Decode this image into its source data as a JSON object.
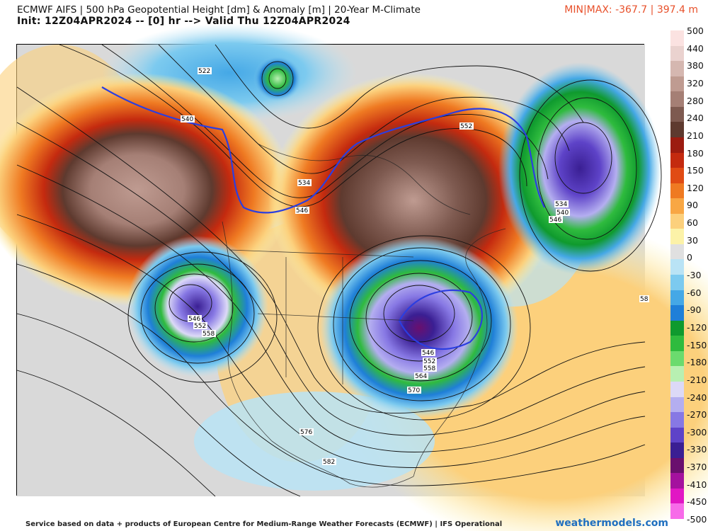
{
  "header": {
    "title": "ECMWF AIFS | 500 hPa Geopotential Height [dm] & Anomaly [m] | 20-Year M-Climate",
    "subtitle": "Init: 12Z04APR2024 -- [0] hr --> Valid Thu 12Z04APR2024",
    "minmax": "MIN|MAX: -367.7 | 397.4 m"
  },
  "colorbar": {
    "labels": [
      "500",
      "440",
      "380",
      "320",
      "280",
      "240",
      "210",
      "180",
      "150",
      "120",
      "90",
      "60",
      "30",
      "0",
      "-30",
      "-60",
      "-90",
      "-120",
      "-150",
      "-180",
      "-210",
      "-240",
      "-270",
      "-300",
      "-330",
      "-370",
      "-410",
      "-450",
      "-500"
    ],
    "colors": [
      "#fbe2e1",
      "#ead2cf",
      "#d5b7b0",
      "#bf9b91",
      "#a57f75",
      "#7e5a50",
      "#5e3a2f",
      "#9c1c10",
      "#c42a0f",
      "#e04b14",
      "#ef7a22",
      "#f8a744",
      "#fcd07c",
      "#fcf2a8",
      "#e0e0e0",
      "#b9e3f5",
      "#7ccaef",
      "#45a8e6",
      "#1f7fd8",
      "#0f9a2e",
      "#2fbb3e",
      "#6bdb6e",
      "#b8f0b2",
      "#dcd9f7",
      "#b4aef0",
      "#8778e4",
      "#5e43c8",
      "#3a1f93",
      "#6a0f6e",
      "#a4119e",
      "#e117c4",
      "#f76be9"
    ],
    "label_0_index": 13
  },
  "map": {
    "contour_labels": [
      {
        "text": "522"
      },
      {
        "text": "540"
      },
      {
        "text": "534"
      },
      {
        "text": "546"
      },
      {
        "text": "552"
      },
      {
        "text": "534"
      },
      {
        "text": "540"
      },
      {
        "text": "546"
      },
      {
        "text": "546"
      },
      {
        "text": "552"
      },
      {
        "text": "558"
      },
      {
        "text": "546"
      },
      {
        "text": "552"
      },
      {
        "text": "558"
      },
      {
        "text": "564"
      },
      {
        "text": "570"
      },
      {
        "text": "576"
      },
      {
        "text": "582"
      },
      {
        "text": "58"
      }
    ]
  },
  "footer": {
    "credit": "Service based on data + products of European Centre for Medium-Range Weather Forecasts (ECMWF) | IFS Operational",
    "brand": "weathermodels.com"
  }
}
